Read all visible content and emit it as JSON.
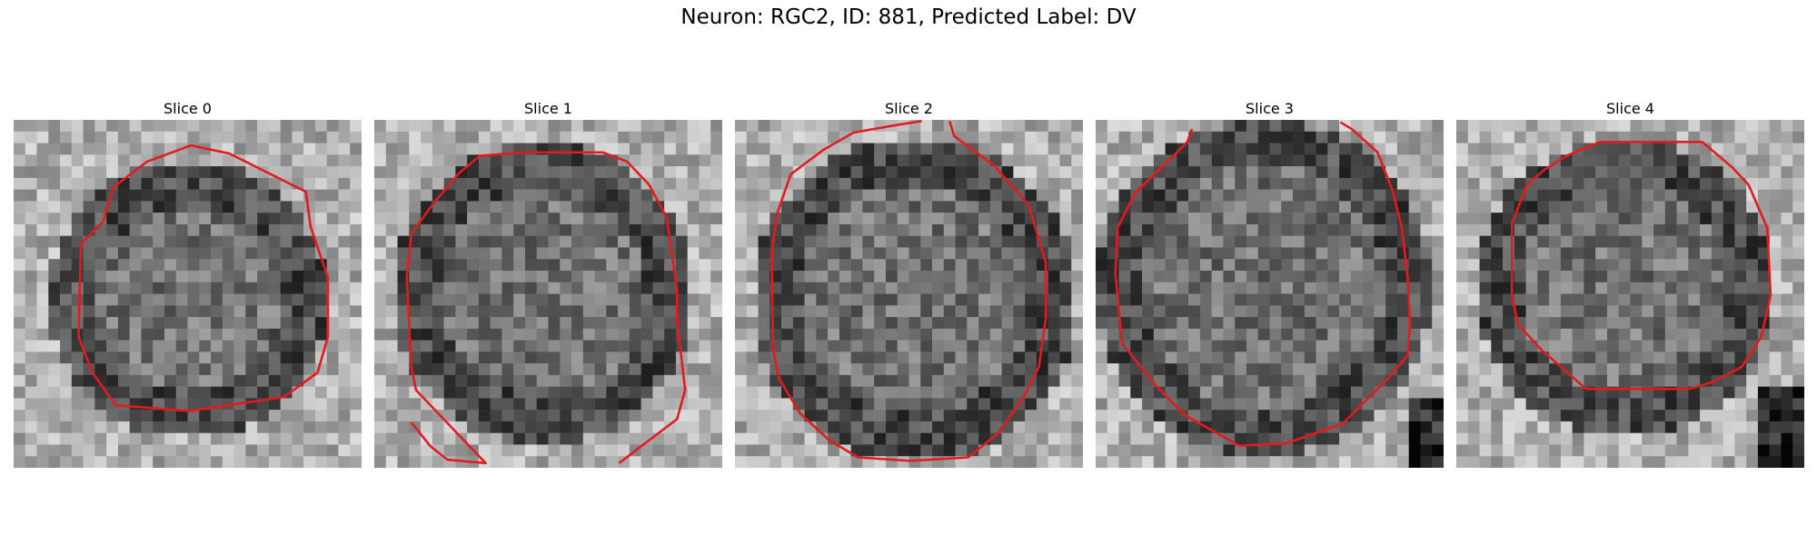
{
  "figure": {
    "title": "Neuron: RGC2, ID: 881, Predicted Label: DV",
    "contour_color": "#e41a1c"
  },
  "slices": [
    {
      "title": "Slice 0"
    },
    {
      "title": "Slice 1"
    },
    {
      "title": "Slice 2"
    },
    {
      "title": "Slice 3"
    },
    {
      "title": "Slice 4"
    }
  ]
}
